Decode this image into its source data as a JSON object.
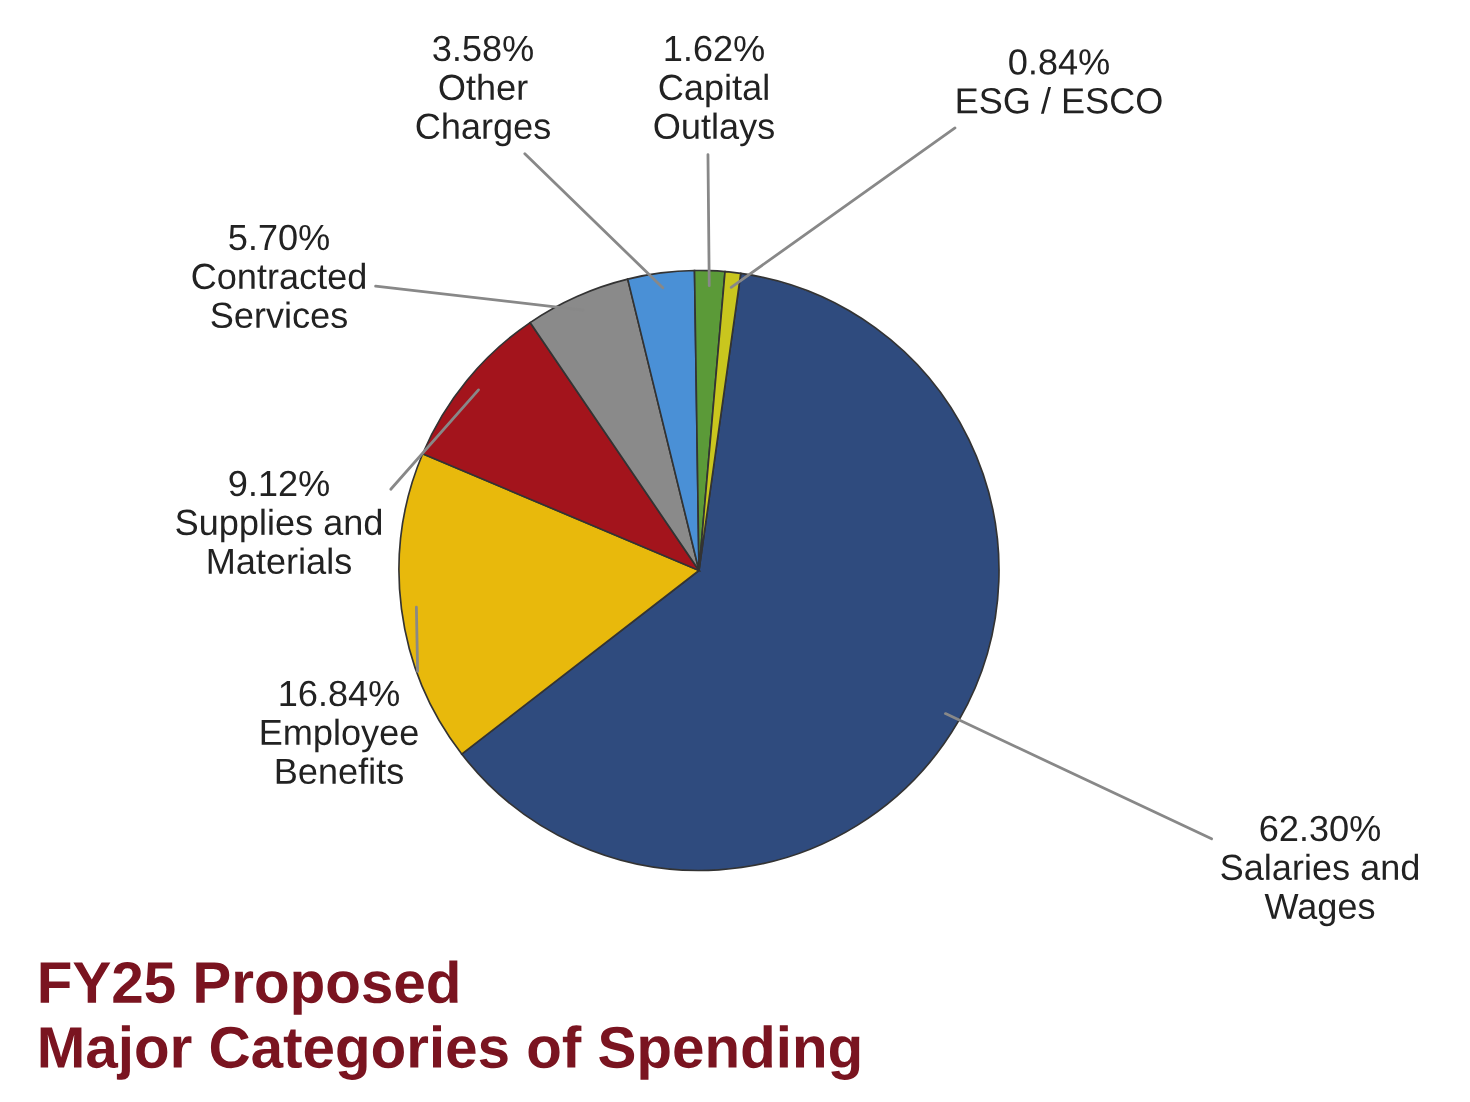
{
  "chart_data": {
    "type": "pie",
    "title": "FY25 Proposed\nMajor Categories of Spending",
    "categories": [
      "Salaries and\nWages",
      "Employee\nBenefits",
      "Supplies and\nMaterials",
      "Contracted\nServices",
      "Other\nCharges",
      "Capital\nOutlays",
      "ESG / ESCO"
    ],
    "values": [
      62.3,
      16.84,
      9.12,
      5.7,
      3.58,
      1.62,
      0.84
    ],
    "value_labels": [
      "62.30%",
      "16.84%",
      "9.12%",
      "5.70%",
      "3.58%",
      "1.62%",
      "0.84%"
    ],
    "colors": [
      "#2f4b7e",
      "#e8b90c",
      "#a3141c",
      "#8a8a8a",
      "#4a90d6",
      "#5b9a38",
      "#c9c61e"
    ],
    "legend": false
  }
}
